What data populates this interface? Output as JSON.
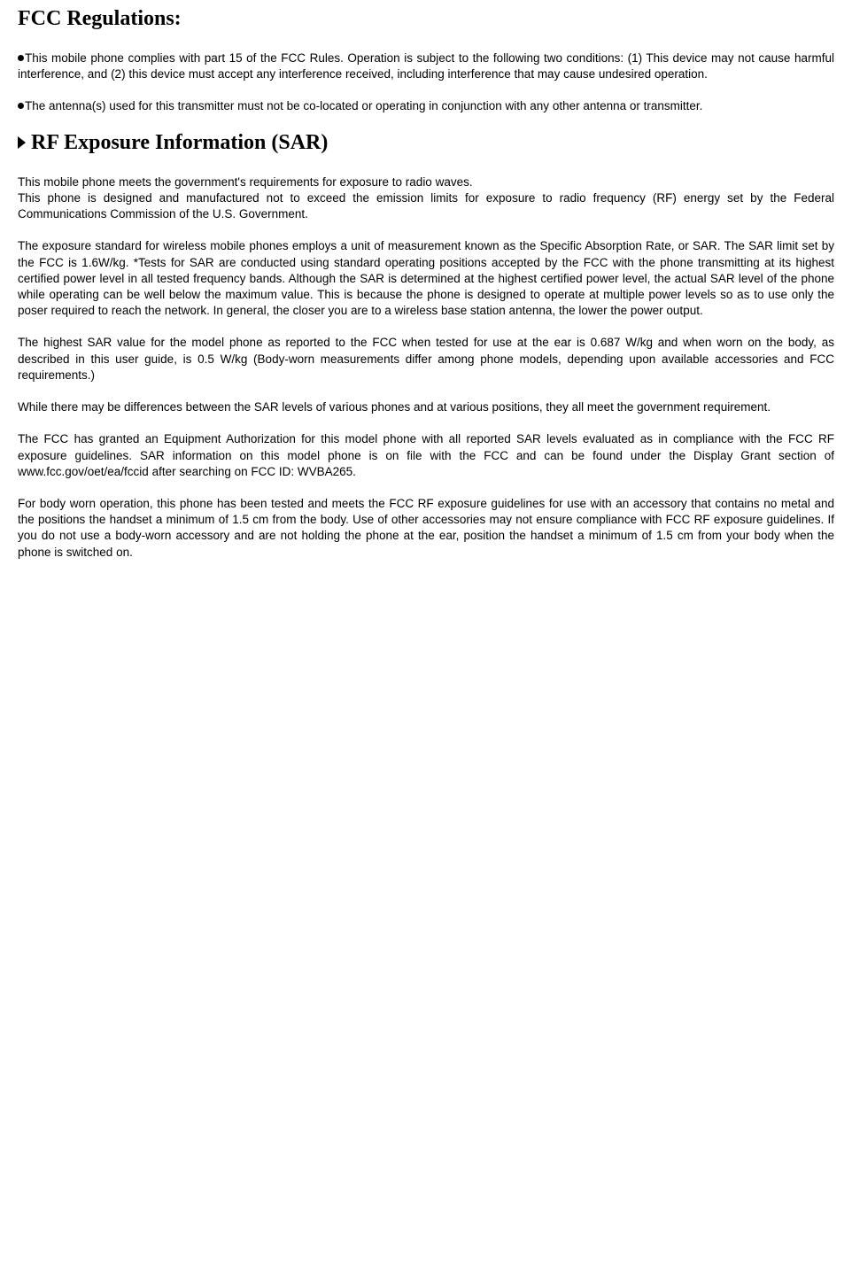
{
  "doc": {
    "heading1": "FCC Regulations:",
    "p1": "This mobile phone complies with part 15 of the FCC Rules. Operation is subject to the following two conditions: (1) This device may not cause harmful interference, and (2) this device must accept any interference received, including interference that may cause undesired operation.",
    "p2": "The antenna(s) used for this transmitter must not be co-located or operating in conjunction with any other antenna or transmitter.",
    "heading2": "RF Exposure Information (SAR)",
    "p3a": "This mobile phone meets the government's requirements for exposure to radio waves.",
    "p3b": "This phone is designed and manufactured not to exceed the emission limits for exposure to radio frequency (RF) energy set by the Federal Communications Commission of the U.S. Government.",
    "p4": "The exposure standard for wireless mobile phones employs a unit of measurement known as the Specific Absorption Rate, or SAR.   The SAR limit set by the FCC is 1.6W/kg.   *Tests for SAR are conducted using standard operating positions accepted by the FCC with the phone transmitting at its highest certified power level in all tested frequency bands.   Although the SAR is determined at the highest certified power level, the actual SAR level of the phone while operating can be well below the maximum value.   This is because the phone is designed to operate at multiple power levels so as to use only the poser required to reach the network.   In general, the closer you are to a wireless base station antenna, the lower the power output.",
    "p5": "The highest SAR value for the model phone as reported to the FCC when tested for use at the ear is 0.687 W/kg and when worn on the body, as described in this user guide, is 0.5 W/kg (Body-worn measurements differ among phone models, depending upon available accessories and FCC requirements.)",
    "p6": "While there may be differences between the SAR levels of various phones and at various positions, they all meet the government requirement.",
    "p7": "The FCC has granted an Equipment Authorization for this model phone with all reported SAR levels evaluated as in compliance with the FCC RF exposure guidelines.   SAR information on this model phone is on file with the FCC and can be found under the Display Grant section of www.fcc.gov/oet/ea/fccid after searching on FCC ID: WVBA265.",
    "p8": "For body worn operation, this phone has been tested and meets the FCC RF exposure guidelines for use with an accessory that contains no metal and the positions the handset a minimum of 1.5 cm from the body.   Use of other accessories may not ensure compliance with FCC RF exposure guidelines.   If you do not use a body-worn accessory and are not holding the phone at the ear, position the handset a minimum of 1.5 cm from your body when the phone is switched on."
  },
  "styles": {
    "body_width": 962,
    "body_bg": "#ffffff",
    "body_font": "Verdana",
    "body_fontsize": 13.5,
    "body_color": "#000000",
    "heading_font": "Times New Roman",
    "heading_fontsize": 24,
    "heading_weight": "bold",
    "paragraph_align": "justify",
    "paragraph_lineheight": 1.35,
    "bullet_color": "#000000",
    "bullet_size": 7,
    "arrow_color": "#000000"
  }
}
